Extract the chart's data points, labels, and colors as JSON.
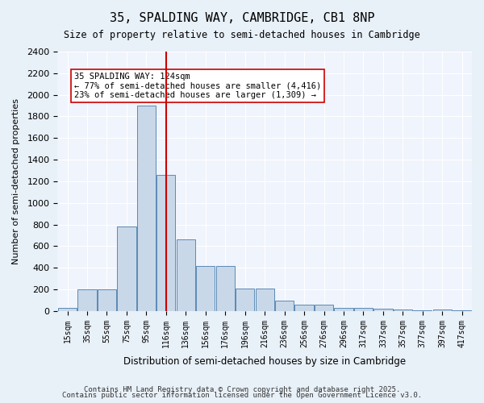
{
  "title": "35, SPALDING WAY, CAMBRIDGE, CB1 8NP",
  "subtitle": "Size of property relative to semi-detached houses in Cambridge",
  "xlabel": "Distribution of semi-detached houses by size in Cambridge",
  "ylabel": "Number of semi-detached properties",
  "bins": [
    "15sqm",
    "35sqm",
    "55sqm",
    "75sqm",
    "95sqm",
    "116sqm",
    "136sqm",
    "156sqm",
    "176sqm",
    "196sqm",
    "216sqm",
    "236sqm",
    "256sqm",
    "276sqm",
    "296sqm",
    "317sqm",
    "337sqm",
    "357sqm",
    "377sqm",
    "397sqm",
    "417sqm"
  ],
  "bar_values": [
    30,
    200,
    200,
    780,
    1900,
    1260,
    660,
    420,
    420,
    210,
    210,
    100,
    60,
    60,
    30,
    30,
    20,
    15,
    10,
    15,
    5
  ],
  "bar_color": "#c8d8e8",
  "bar_edge_color": "#5a8ab5",
  "property_sqm": 124,
  "property_bin_index": 5,
  "vline_color": "#cc0000",
  "annotation_text": "35 SPALDING WAY: 124sqm\n← 77% of semi-detached houses are smaller (4,416)\n23% of semi-detached houses are larger (1,309) →",
  "annotation_box_color": "#ffffff",
  "annotation_box_edge": "#cc0000",
  "ylim": [
    0,
    2400
  ],
  "yticks": [
    0,
    200,
    400,
    600,
    800,
    1000,
    1200,
    1400,
    1600,
    1800,
    2000,
    2200,
    2400
  ],
  "footer_line1": "Contains HM Land Registry data © Crown copyright and database right 2025.",
  "footer_line2": "Contains public sector information licensed under the Open Government Licence v3.0.",
  "bg_color": "#e8f0f8",
  "plot_bg_color": "#f0f4fc"
}
